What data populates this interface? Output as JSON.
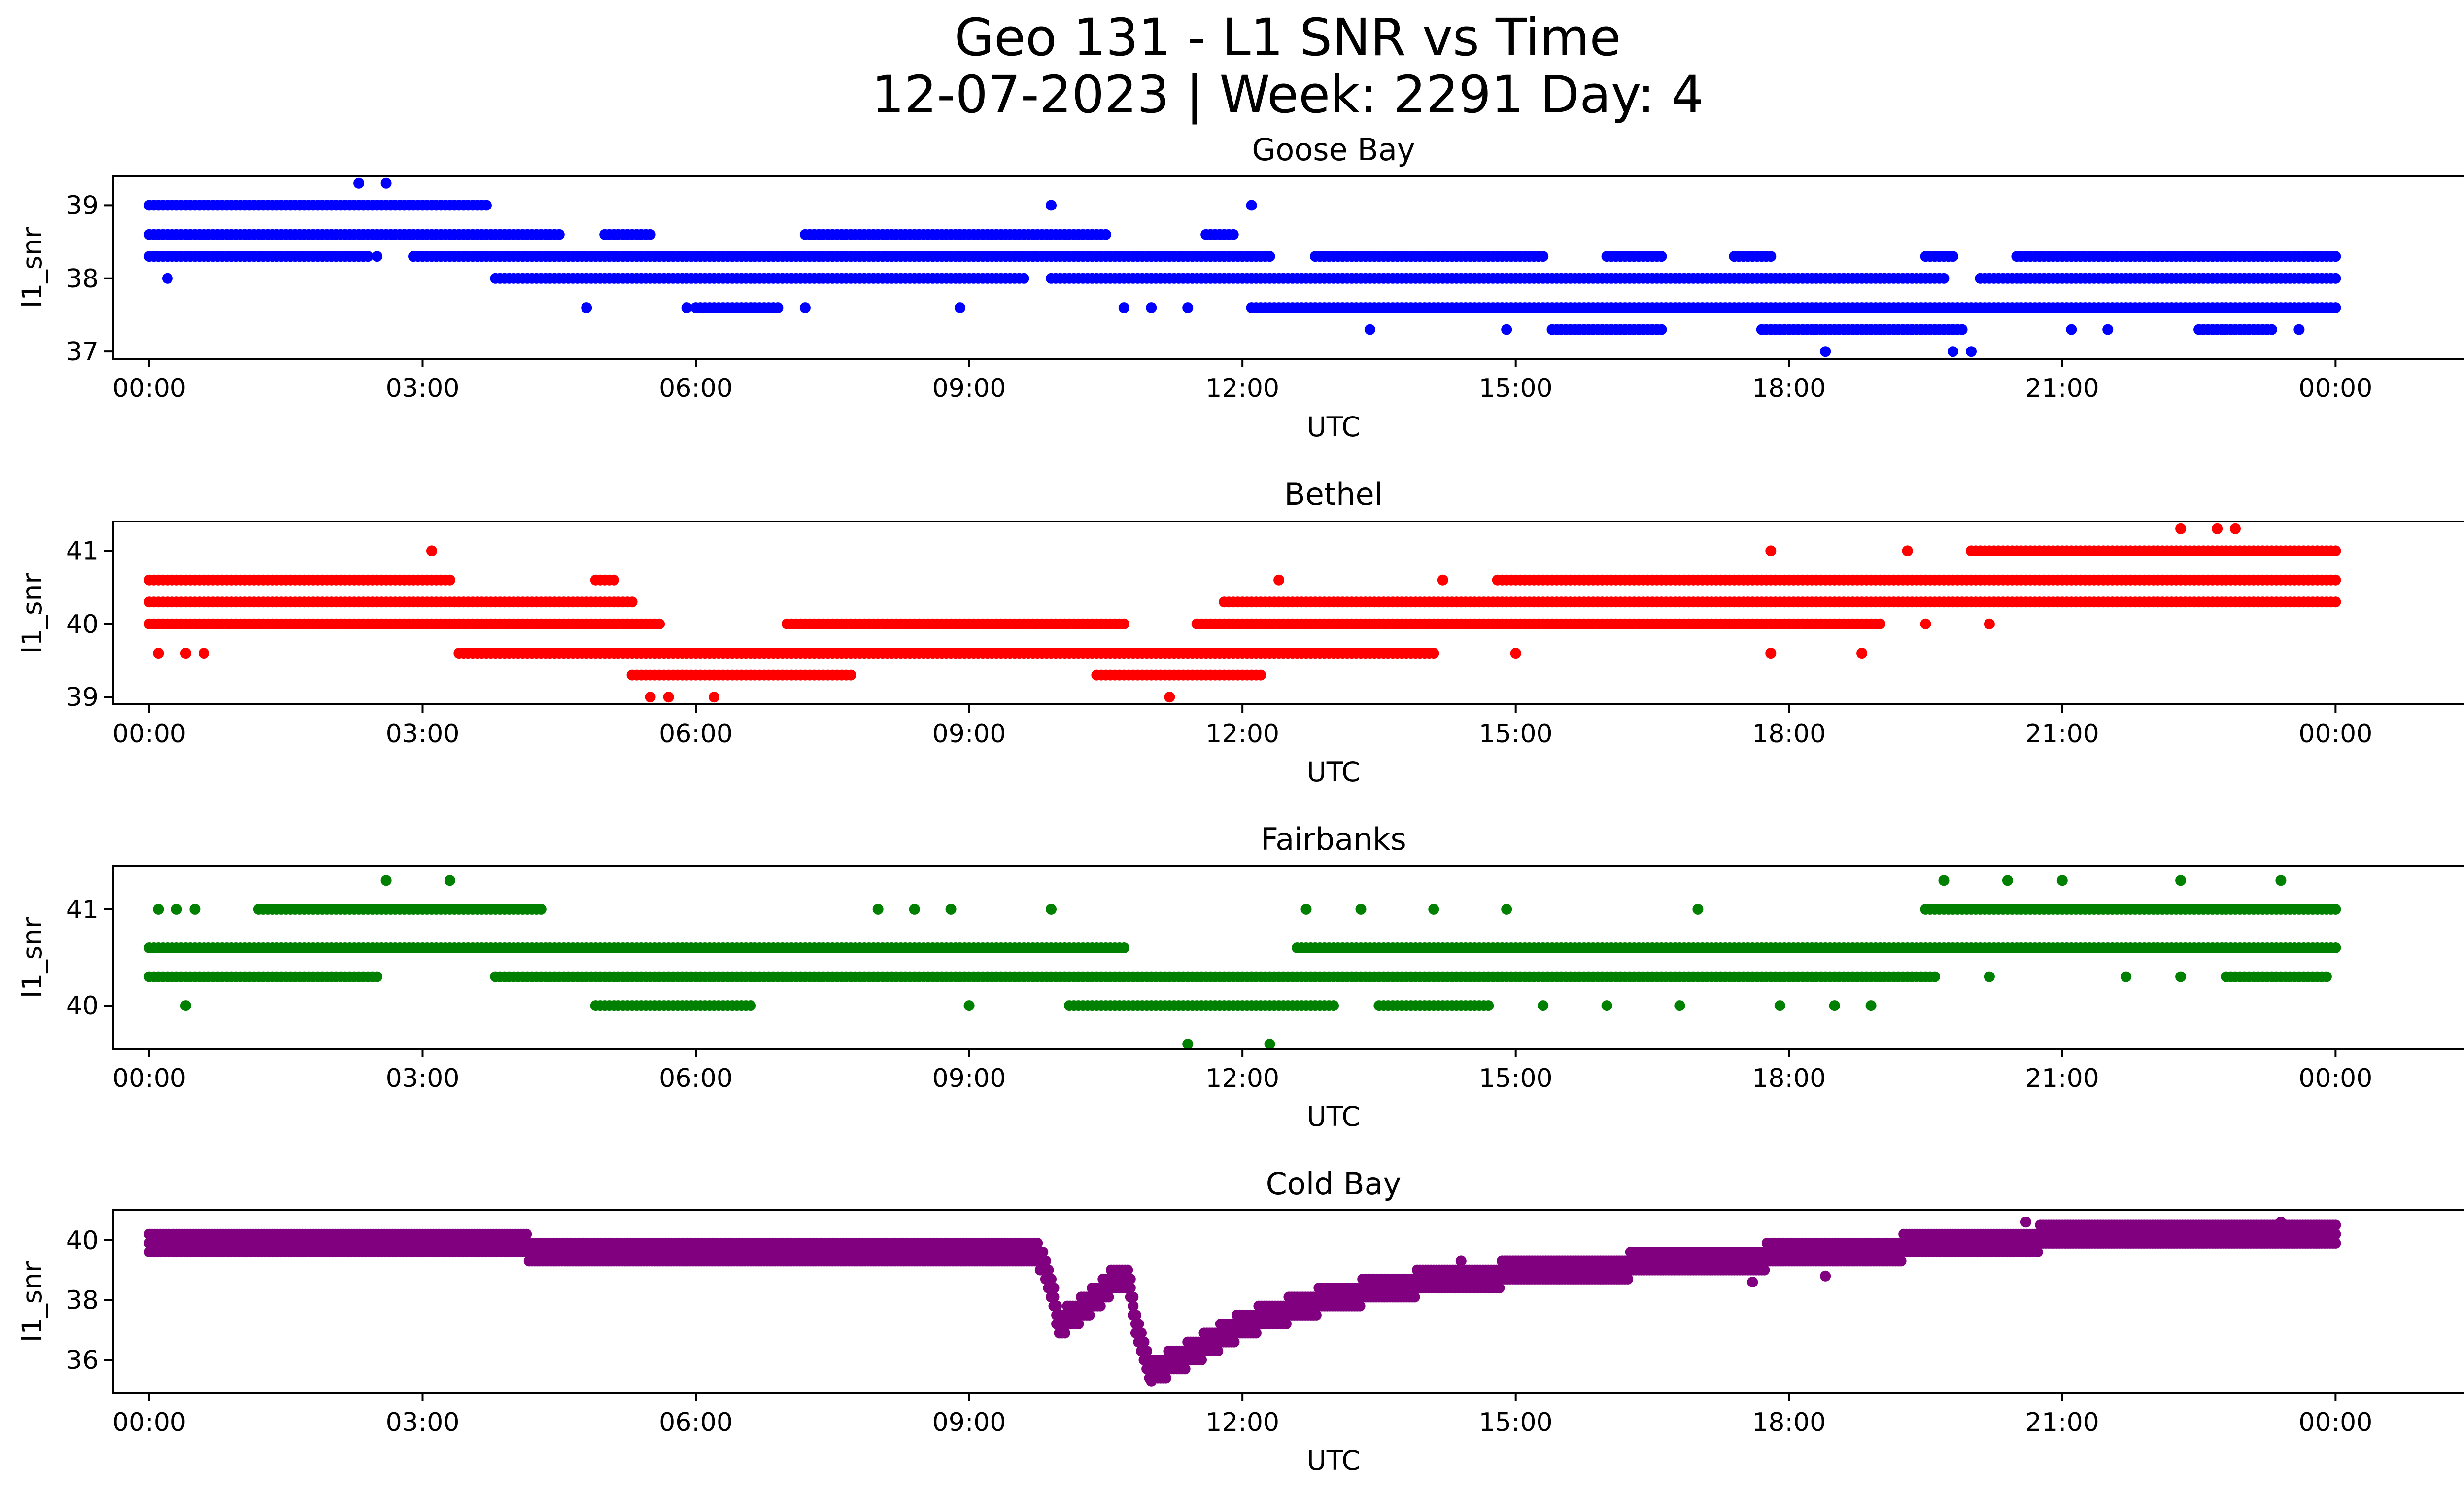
{
  "figure": {
    "title_line1": "Geo 131 - L1 SNR vs Time",
    "title_line2": "12-07-2023 | Week: 2291 Day: 4"
  },
  "chart_data": [
    {
      "type": "scatter",
      "title": "Goose Bay",
      "xlabel": "UTC",
      "ylabel": "l1_snr",
      "color": "#0000ff",
      "xlim": [
        -0.4,
        26.4
      ],
      "ylim": [
        36.9,
        39.4
      ],
      "x_ticks": [
        "00:00",
        "03:00",
        "06:00",
        "09:00",
        "12:00",
        "15:00",
        "18:00",
        "21:00",
        "00:00"
      ],
      "y_ticks": [
        37,
        38,
        39
      ],
      "segments": [
        {
          "y": 39.0,
          "from": 0.0,
          "to": 3.7
        },
        {
          "y": 38.6,
          "from": 0.0,
          "to": 4.5
        },
        {
          "y": 38.6,
          "from": 5.0,
          "to": 5.5
        },
        {
          "y": 38.6,
          "from": 7.2,
          "to": 10.5
        },
        {
          "y": 38.6,
          "from": 11.6,
          "to": 11.9
        },
        {
          "y": 38.3,
          "from": 0.0,
          "to": 2.4
        },
        {
          "y": 38.3,
          "from": 2.9,
          "to": 12.3
        },
        {
          "y": 38.3,
          "from": 12.8,
          "to": 15.3
        },
        {
          "y": 38.3,
          "from": 16.0,
          "to": 16.6
        },
        {
          "y": 38.3,
          "from": 17.4,
          "to": 17.8
        },
        {
          "y": 38.3,
          "from": 19.5,
          "to": 19.8
        },
        {
          "y": 38.3,
          "from": 20.5,
          "to": 24.0
        },
        {
          "y": 38.0,
          "from": 3.8,
          "to": 9.6
        },
        {
          "y": 38.0,
          "from": 9.9,
          "to": 19.7
        },
        {
          "y": 38.0,
          "from": 20.1,
          "to": 24.0
        },
        {
          "y": 37.6,
          "from": 12.1,
          "to": 24.0
        },
        {
          "y": 37.6,
          "from": 6.0,
          "to": 6.9
        },
        {
          "y": 37.3,
          "from": 15.4,
          "to": 16.6
        },
        {
          "y": 37.3,
          "from": 17.7,
          "to": 19.9
        },
        {
          "y": 37.3,
          "from": 22.5,
          "to": 23.3
        }
      ],
      "points": [
        {
          "x": 2.3,
          "y": 39.3
        },
        {
          "x": 2.6,
          "y": 39.3
        },
        {
          "x": 0.2,
          "y": 38.0
        },
        {
          "x": 2.5,
          "y": 38.3
        },
        {
          "x": 4.8,
          "y": 37.6
        },
        {
          "x": 5.9,
          "y": 37.6
        },
        {
          "x": 7.2,
          "y": 37.6
        },
        {
          "x": 8.9,
          "y": 37.6
        },
        {
          "x": 9.9,
          "y": 39.0
        },
        {
          "x": 12.1,
          "y": 39.0
        },
        {
          "x": 10.7,
          "y": 37.6
        },
        {
          "x": 11.0,
          "y": 37.6
        },
        {
          "x": 11.4,
          "y": 37.6
        },
        {
          "x": 13.4,
          "y": 37.3
        },
        {
          "x": 14.9,
          "y": 37.3
        },
        {
          "x": 18.4,
          "y": 37.0
        },
        {
          "x": 19.8,
          "y": 37.0
        },
        {
          "x": 20.0,
          "y": 37.0
        },
        {
          "x": 21.1,
          "y": 37.3
        },
        {
          "x": 21.5,
          "y": 37.3
        },
        {
          "x": 23.6,
          "y": 37.3
        }
      ]
    },
    {
      "type": "scatter",
      "title": "Bethel",
      "xlabel": "UTC",
      "ylabel": "l1_snr",
      "color": "#ff0000",
      "xlim": [
        -0.4,
        26.4
      ],
      "ylim": [
        38.9,
        41.4
      ],
      "x_ticks": [
        "00:00",
        "03:00",
        "06:00",
        "09:00",
        "12:00",
        "15:00",
        "18:00",
        "21:00",
        "00:00"
      ],
      "y_ticks": [
        39,
        40,
        41
      ],
      "segments": [
        {
          "y": 40.6,
          "from": 0.0,
          "to": 3.3
        },
        {
          "y": 40.6,
          "from": 4.9,
          "to": 5.1
        },
        {
          "y": 40.6,
          "from": 14.8,
          "to": 24.0
        },
        {
          "y": 40.3,
          "from": 0.0,
          "to": 5.3
        },
        {
          "y": 40.3,
          "from": 11.8,
          "to": 24.0
        },
        {
          "y": 40.0,
          "from": 0.0,
          "to": 5.6
        },
        {
          "y": 40.0,
          "from": 7.0,
          "to": 10.7
        },
        {
          "y": 40.0,
          "from": 11.5,
          "to": 19.0
        },
        {
          "y": 39.6,
          "from": 3.4,
          "to": 14.1
        },
        {
          "y": 39.3,
          "from": 5.3,
          "to": 7.7
        },
        {
          "y": 39.3,
          "from": 10.4,
          "to": 12.2
        },
        {
          "y": 41.0,
          "from": 20.0,
          "to": 24.0
        }
      ],
      "points": [
        {
          "x": 3.1,
          "y": 41.0
        },
        {
          "x": 17.8,
          "y": 41.0
        },
        {
          "x": 19.3,
          "y": 41.0
        },
        {
          "x": 22.3,
          "y": 41.3
        },
        {
          "x": 22.7,
          "y": 41.3
        },
        {
          "x": 22.9,
          "y": 41.3
        },
        {
          "x": 0.1,
          "y": 39.6
        },
        {
          "x": 0.4,
          "y": 39.6
        },
        {
          "x": 0.6,
          "y": 39.6
        },
        {
          "x": 5.5,
          "y": 39.0
        },
        {
          "x": 5.7,
          "y": 39.0
        },
        {
          "x": 6.2,
          "y": 39.0
        },
        {
          "x": 11.2,
          "y": 39.0
        },
        {
          "x": 15.0,
          "y": 39.6
        },
        {
          "x": 17.8,
          "y": 39.6
        },
        {
          "x": 18.8,
          "y": 39.6
        },
        {
          "x": 12.4,
          "y": 40.6
        },
        {
          "x": 14.2,
          "y": 40.6
        },
        {
          "x": 19.5,
          "y": 40.0
        },
        {
          "x": 20.2,
          "y": 40.0
        }
      ]
    },
    {
      "type": "scatter",
      "title": "Fairbanks",
      "xlabel": "UTC",
      "ylabel": "l1_snr",
      "color": "#008000",
      "xlim": [
        -0.4,
        26.4
      ],
      "ylim": [
        39.55,
        41.45
      ],
      "x_ticks": [
        "00:00",
        "03:00",
        "06:00",
        "09:00",
        "12:00",
        "15:00",
        "18:00",
        "21:00",
        "00:00"
      ],
      "y_ticks": [
        40,
        41
      ],
      "segments": [
        {
          "y": 41.0,
          "from": 1.2,
          "to": 4.3
        },
        {
          "y": 41.0,
          "from": 19.5,
          "to": 24.0
        },
        {
          "y": 40.6,
          "from": 0.0,
          "to": 10.7
        },
        {
          "y": 40.6,
          "from": 12.6,
          "to": 24.0
        },
        {
          "y": 40.3,
          "from": 0.0,
          "to": 2.5
        },
        {
          "y": 40.3,
          "from": 3.8,
          "to": 19.6
        },
        {
          "y": 40.3,
          "from": 22.8,
          "to": 23.9
        },
        {
          "y": 40.0,
          "from": 4.9,
          "to": 6.6
        },
        {
          "y": 40.0,
          "from": 10.1,
          "to": 13.0
        },
        {
          "y": 40.0,
          "from": 13.5,
          "to": 14.7
        }
      ],
      "points": [
        {
          "x": 0.1,
          "y": 41.0
        },
        {
          "x": 0.3,
          "y": 41.0
        },
        {
          "x": 0.5,
          "y": 41.0
        },
        {
          "x": 2.6,
          "y": 41.3
        },
        {
          "x": 3.3,
          "y": 41.3
        },
        {
          "x": 0.4,
          "y": 40.0
        },
        {
          "x": 8.0,
          "y": 41.0
        },
        {
          "x": 8.4,
          "y": 41.0
        },
        {
          "x": 8.8,
          "y": 41.0
        },
        {
          "x": 9.9,
          "y": 41.0
        },
        {
          "x": 12.7,
          "y": 41.0
        },
        {
          "x": 13.3,
          "y": 41.0
        },
        {
          "x": 14.1,
          "y": 41.0
        },
        {
          "x": 14.9,
          "y": 41.0
        },
        {
          "x": 17.0,
          "y": 41.0
        },
        {
          "x": 11.4,
          "y": 39.6
        },
        {
          "x": 12.3,
          "y": 39.6
        },
        {
          "x": 19.7,
          "y": 41.3
        },
        {
          "x": 20.4,
          "y": 41.3
        },
        {
          "x": 21.0,
          "y": 41.3
        },
        {
          "x": 22.3,
          "y": 41.3
        },
        {
          "x": 23.4,
          "y": 41.3
        },
        {
          "x": 20.2,
          "y": 40.3
        },
        {
          "x": 21.7,
          "y": 40.3
        },
        {
          "x": 22.3,
          "y": 40.3
        },
        {
          "x": 9.0,
          "y": 40.0
        },
        {
          "x": 15.3,
          "y": 40.0
        },
        {
          "x": 16.0,
          "y": 40.0
        },
        {
          "x": 16.8,
          "y": 40.0
        },
        {
          "x": 17.9,
          "y": 40.0
        },
        {
          "x": 18.5,
          "y": 40.0
        },
        {
          "x": 18.9,
          "y": 40.0
        }
      ]
    },
    {
      "type": "scatter",
      "title": "Cold Bay",
      "xlabel": "UTC",
      "ylabel": "l1_snr",
      "color": "#800080",
      "xlim": [
        -0.4,
        26.4
      ],
      "ylim": [
        34.9,
        41.0
      ],
      "x_ticks": [
        "00:00",
        "03:00",
        "06:00",
        "09:00",
        "12:00",
        "15:00",
        "18:00",
        "21:00",
        "00:00"
      ],
      "y_ticks": [
        36,
        38,
        40
      ],
      "trend": [
        [
          0.0,
          40.0
        ],
        [
          3.6,
          40.0
        ],
        [
          4.0,
          39.8
        ],
        [
          5.0,
          39.5
        ],
        [
          9.2,
          39.5
        ],
        [
          9.6,
          39.6
        ],
        [
          9.8,
          39.4
        ],
        [
          10.0,
          37.2
        ],
        [
          10.2,
          37.6
        ],
        [
          10.4,
          38.1
        ],
        [
          10.6,
          38.7
        ],
        [
          10.75,
          38.6
        ],
        [
          10.85,
          37.0
        ],
        [
          11.0,
          35.6
        ],
        [
          11.3,
          36.0
        ],
        [
          12.0,
          37.2
        ],
        [
          13.0,
          38.1
        ],
        [
          14.0,
          38.6
        ],
        [
          15.0,
          38.9
        ],
        [
          16.0,
          39.1
        ],
        [
          17.0,
          39.3
        ],
        [
          18.0,
          39.5
        ],
        [
          19.0,
          39.7
        ],
        [
          20.0,
          39.9
        ],
        [
          21.0,
          40.1
        ],
        [
          24.0,
          40.2
        ]
      ],
      "points": [
        {
          "x": 11.0,
          "y": 35.3
        },
        {
          "x": 20.6,
          "y": 40.6
        },
        {
          "x": 23.4,
          "y": 40.6
        },
        {
          "x": 18.4,
          "y": 38.8
        },
        {
          "x": 17.6,
          "y": 38.6
        },
        {
          "x": 14.4,
          "y": 39.3
        }
      ]
    }
  ]
}
